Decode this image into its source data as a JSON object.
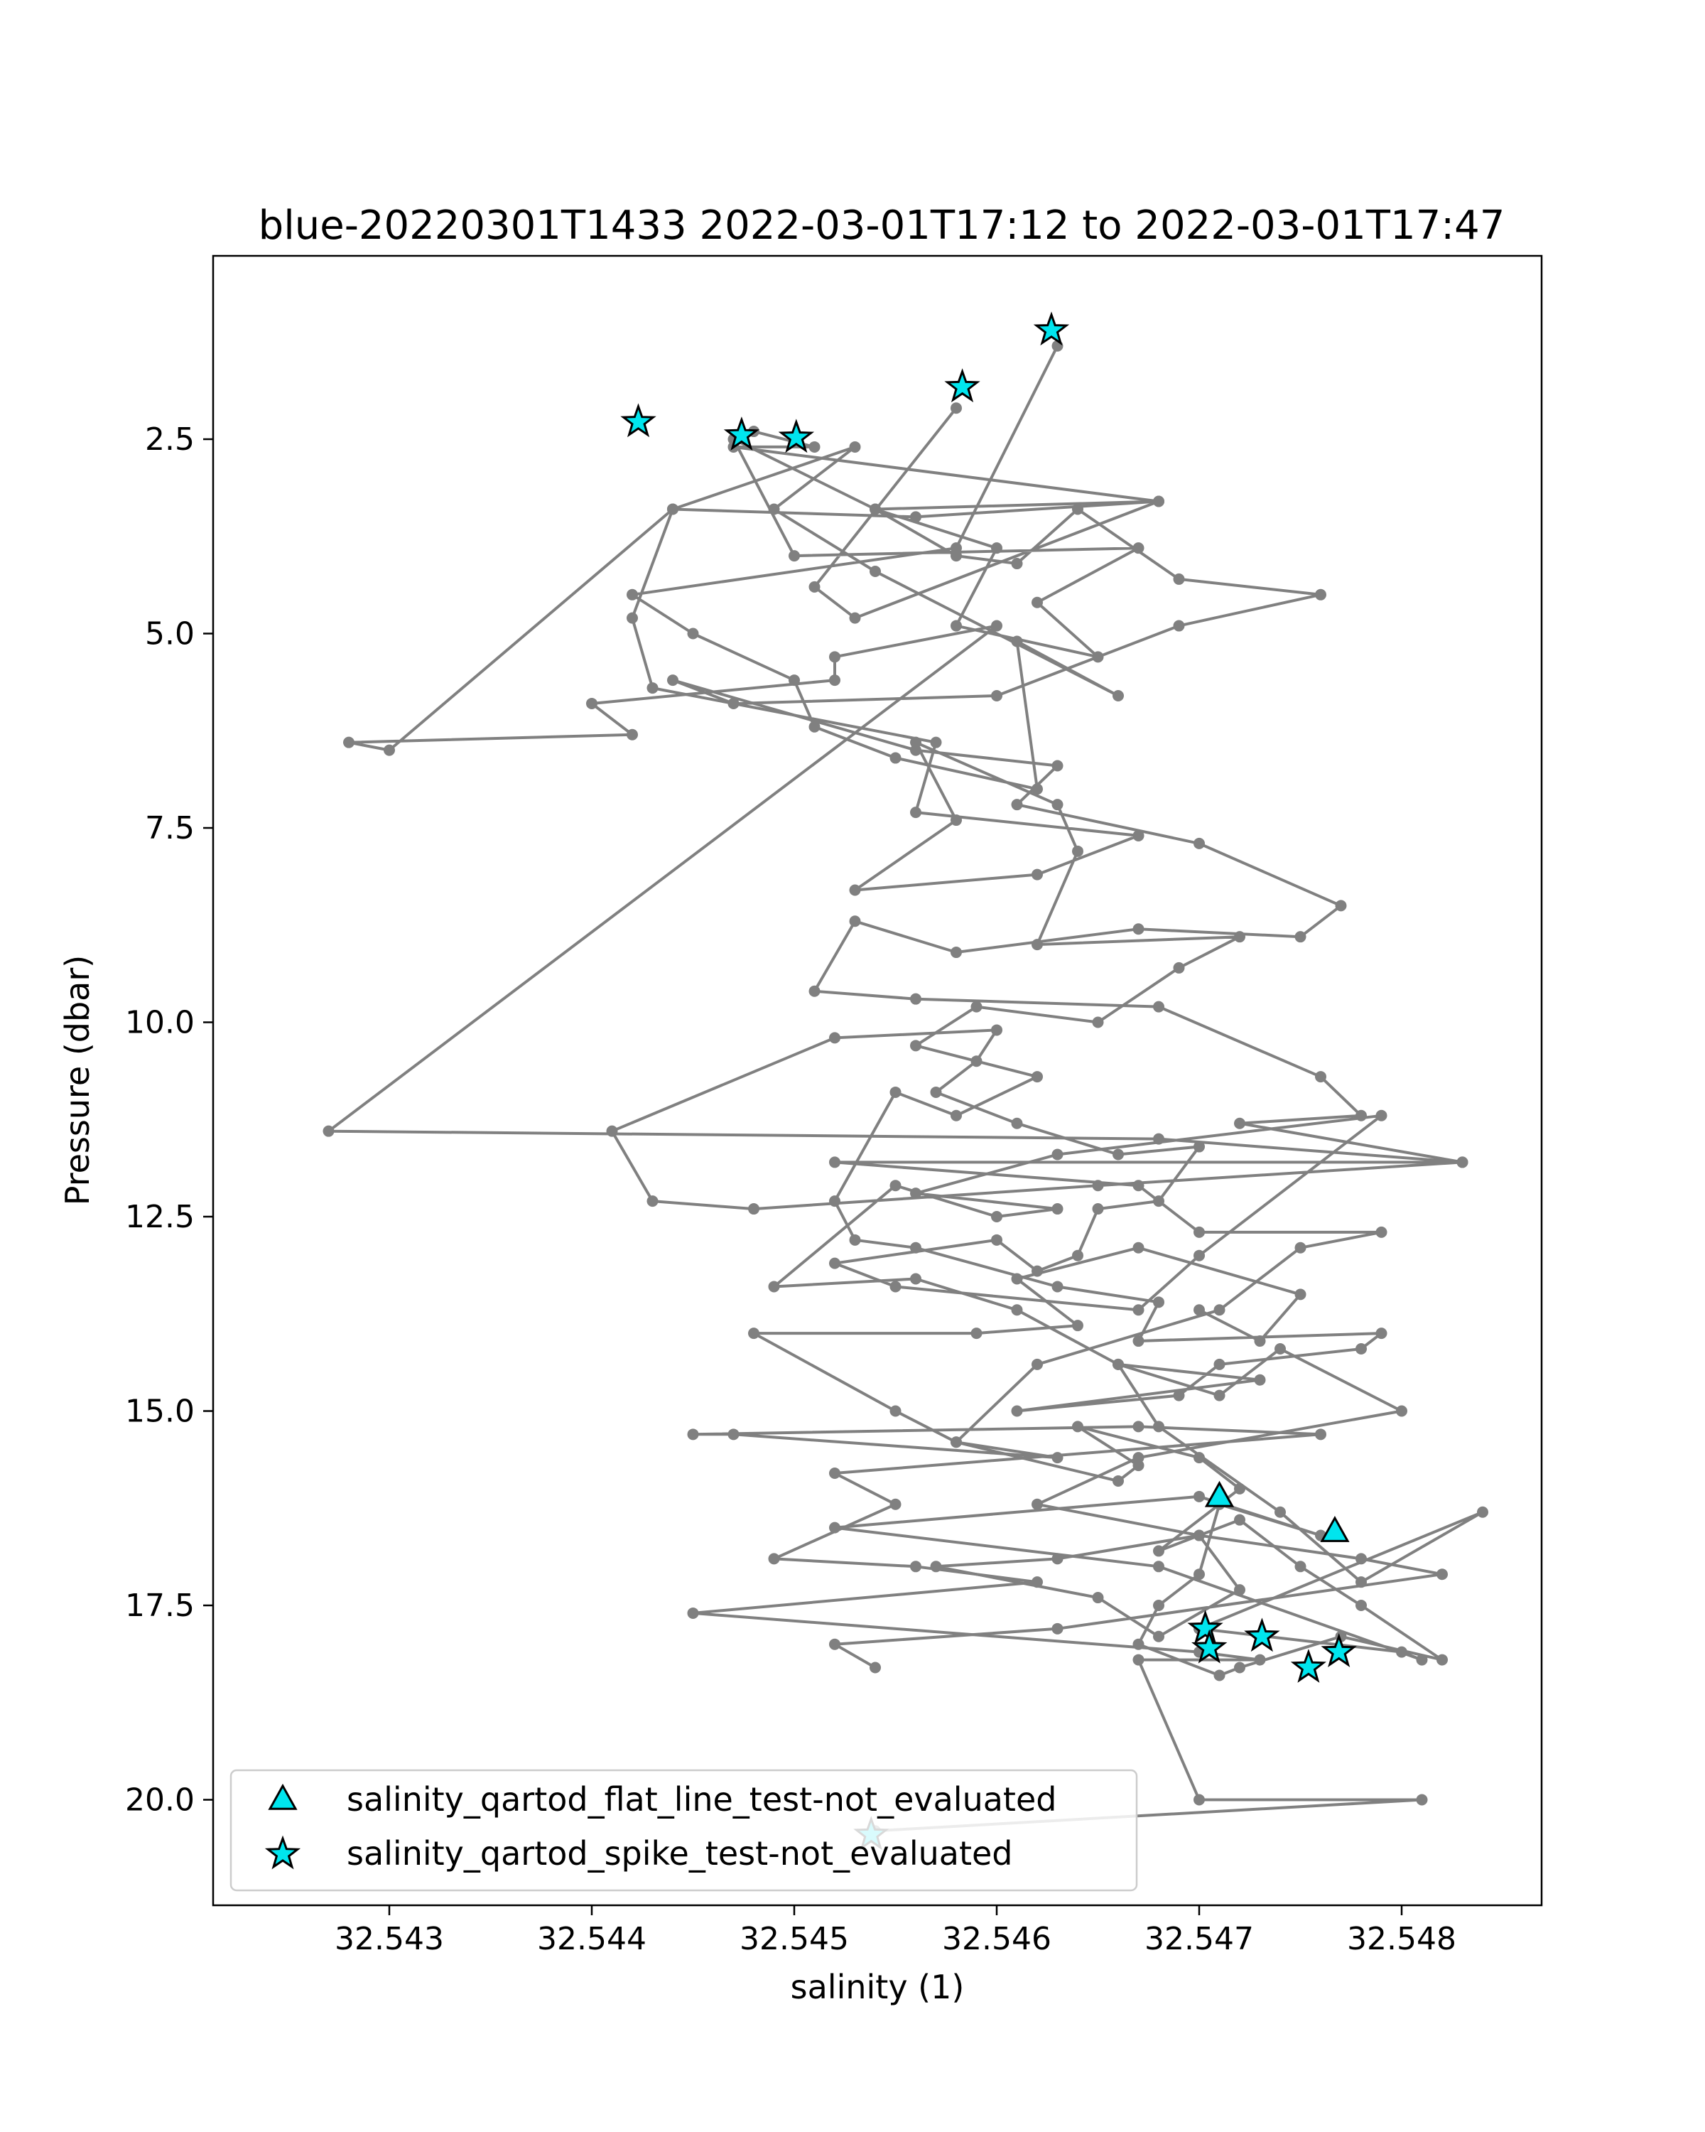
{
  "chart_data": {
    "type": "scatter",
    "title": "blue-20220301T1433 2022-03-01T17:12 to 2022-03-01T17:47",
    "xlabel": "salinity (1)",
    "ylabel": "Pressure (dbar)",
    "xlim": [
      32.5418,
      32.5487
    ],
    "ylim": [
      21.4,
      0.5
    ],
    "y_inverted": true,
    "grid": false,
    "legend_placement": "lower-left",
    "xticks": [
      "32.543",
      "32.544",
      "32.545",
      "32.546",
      "32.547",
      "32.548"
    ],
    "yticks": [
      "2.5",
      "5.0",
      "7.5",
      "10.0",
      "12.5",
      "15.0",
      "17.5",
      "20.0"
    ],
    "colors": {
      "profile": "#808080",
      "flag_fill": "#00e5ee",
      "flag_edge": "#000000",
      "axes": "#000000"
    },
    "profile": {
      "name": "",
      "color": "#808080",
      "x": [
        32.5463,
        32.5458,
        32.5442,
        32.5445,
        32.545,
        32.5451,
        32.5455,
        32.5462,
        32.5461,
        32.5466,
        32.5454,
        32.5449,
        32.5453,
        32.5444,
        32.5442,
        32.5443,
        32.5457,
        32.5456,
        32.5467,
        32.5462,
        32.5453,
        32.5458,
        32.5456,
        32.5463,
        32.5464,
        32.5462,
        32.5472,
        32.5469,
        32.5465,
        32.5459,
        32.5456,
        32.5462,
        32.5458,
        32.5455,
        32.5452,
        32.5453,
        32.5456,
        32.5463,
        32.5468,
        32.5467,
        32.5479,
        32.5478,
        32.5471,
        32.5469,
        32.5461,
        32.5473,
        32.5466,
        32.5468,
        32.5474,
        32.5478,
        32.5484,
        32.547,
        32.548,
        32.5481,
        32.5468,
        32.5452,
        32.547,
        32.5476,
        32.5471,
        32.547,
        32.5468,
        32.5467,
        32.5471,
        32.5472,
        32.5477,
        32.5482,
        32.5478,
        32.5475,
        32.5472,
        32.5468,
        32.5472,
        32.547,
        32.5464,
        32.5467,
        32.5466,
        32.5458,
        32.5455,
        32.5448,
        32.5459,
        32.5464,
        32.5461,
        32.5467,
        32.5475,
        32.5473,
        32.547
      ],
      "y": [
        1.3,
        3.9,
        4.5,
        5.0,
        5.6,
        6.2,
        6.6,
        7.0,
        5.1,
        5.8,
        4.2,
        3.4,
        2.6,
        3.4,
        4.8,
        5.7,
        6.4,
        7.3,
        7.6,
        8.1,
        8.3,
        7.4,
        6.4,
        7.2,
        7.8,
        9.0,
        8.9,
        9.3,
        10.0,
        9.8,
        10.3,
        10.7,
        11.2,
        10.9,
        12.3,
        12.8,
        12.9,
        13.4,
        13.6,
        14.1,
        14.0,
        14.2,
        14.4,
        14.8,
        15.0,
        14.6,
        14.4,
        15.2,
        16.3,
        17.2,
        16.3,
        17.8,
        18.1,
        18.2,
        17.0,
        16.5,
        16.1,
        16.6,
        16.2,
        17.1,
        17.5,
        18.0,
        18.4,
        18.3,
        17.9,
        18.2,
        17.5,
        17.0,
        16.4,
        16.8,
        16.0,
        15.6,
        15.2,
        15.7,
        15.9,
        15.4,
        15.0,
        14.0,
        14.0,
        13.9,
        13.3,
        12.9,
        13.5,
        14.1,
        13.7
      ]
    },
    "profile_b": {
      "x": [
        32.5458,
        32.5451,
        32.5453,
        32.5468,
        32.5454,
        32.546,
        32.5458,
        32.5465,
        32.5462,
        32.5467,
        32.545,
        32.5447,
        32.5454,
        32.5458,
        32.5461,
        32.5464,
        32.5469,
        32.5476,
        32.5469,
        32.546,
        32.5447,
        32.5444,
        32.5456,
        32.5463,
        32.5461,
        32.547,
        32.5477,
        32.5475,
        32.5467,
        32.5458,
        32.5453,
        32.5451,
        32.5456,
        32.5468,
        32.5476,
        32.5478,
        32.5472,
        32.5483,
        32.5465,
        32.5448,
        32.5443,
        32.5441,
        32.5452,
        32.546,
        32.5459,
        32.5457,
        32.5461,
        32.5466,
        32.547,
        32.5468,
        32.5465,
        32.5464,
        32.5462,
        32.546,
        32.5452,
        32.5455,
        32.5467,
        32.547,
        32.5479,
        32.5463,
        32.5456,
        32.5463,
        32.546,
        32.5455,
        32.5449,
        32.5456,
        32.5461,
        32.5466,
        32.5471,
        32.5474,
        32.548,
        32.5467,
        32.5462,
        32.547,
        32.5472,
        32.5468,
        32.5465,
        32.5457,
        32.5463,
        32.547,
        32.5478,
        32.5482,
        32.5463,
        32.5452,
        32.5454
      ],
      "y": [
        2.1,
        4.4,
        4.8,
        3.3,
        3.4,
        3.9,
        4.9,
        5.3,
        4.6,
        3.9,
        4.0,
        2.5,
        3.4,
        4.0,
        4.1,
        3.4,
        4.3,
        4.5,
        4.9,
        5.8,
        5.9,
        5.6,
        6.5,
        6.7,
        7.2,
        7.7,
        8.5,
        8.9,
        8.8,
        9.1,
        8.7,
        9.6,
        9.7,
        9.8,
        10.7,
        11.2,
        11.3,
        11.8,
        12.1,
        12.4,
        12.3,
        11.4,
        10.2,
        10.1,
        10.5,
        10.9,
        11.3,
        11.7,
        11.6,
        12.3,
        12.4,
        13.0,
        13.2,
        12.8,
        13.1,
        13.4,
        13.7,
        13.0,
        11.2,
        11.7,
        12.2,
        12.4,
        12.5,
        12.1,
        13.4,
        13.3,
        13.7,
        14.4,
        14.8,
        14.2,
        15.0,
        15.6,
        16.2,
        16.6,
        17.3,
        17.9,
        17.4,
        17.0,
        16.9,
        16.6,
        16.9,
        17.1,
        17.8,
        18.0,
        18.3
      ]
    },
    "profile_c": {
      "x": [
        32.5448,
        32.5451,
        32.5447,
        32.5468,
        32.5456,
        32.5444,
        32.543,
        32.5428,
        32.5442,
        32.544,
        32.5452,
        32.5452,
        32.546,
        32.5427,
        32.5468,
        32.5483,
        32.5452,
        32.5467,
        32.547,
        32.5479,
        32.5475,
        32.5471,
        32.5462,
        32.5458,
        32.5463,
        32.5447,
        32.5445,
        32.5467,
        32.5476,
        32.5452,
        32.5455,
        32.5449,
        32.5456,
        32.5462,
        32.5445,
        32.547,
        32.5473,
        32.5467,
        32.547,
        32.5481,
        32.5454
      ],
      "y": [
        2.4,
        2.6,
        2.6,
        3.3,
        3.5,
        3.4,
        6.5,
        6.4,
        6.3,
        5.9,
        5.6,
        5.3,
        4.9,
        11.4,
        11.5,
        11.8,
        11.8,
        12.1,
        12.7,
        12.7,
        12.9,
        13.7,
        14.4,
        15.4,
        15.6,
        15.3,
        15.3,
        15.2,
        15.3,
        15.8,
        16.2,
        16.9,
        17.0,
        17.2,
        17.6,
        18.1,
        18.2,
        18.2,
        20.0,
        20.0,
        20.4
      ]
    },
    "flagged": [
      {
        "label": "salinity_qartod_flat_line_test-not_evaluated",
        "marker": "triangle",
        "points": [
          [
            32.5471,
            16.1
          ],
          [
            32.54767,
            16.55
          ]
        ]
      },
      {
        "label": "salinity_qartod_spike_test-not_evaluated",
        "marker": "star",
        "points": [
          [
            32.54627,
            1.1
          ],
          [
            32.54583,
            1.83
          ],
          [
            32.54423,
            2.28
          ],
          [
            32.54474,
            2.45
          ],
          [
            32.54501,
            2.48
          ],
          [
            32.54703,
            17.8
          ],
          [
            32.54705,
            18.05
          ],
          [
            32.54731,
            17.9
          ],
          [
            32.54754,
            18.3
          ],
          [
            32.54769,
            18.1
          ],
          [
            32.54538,
            20.45
          ]
        ]
      }
    ],
    "legend": [
      {
        "label": "salinity_qartod_flat_line_test-not_evaluated",
        "marker": "triangle"
      },
      {
        "label": "salinity_qartod_spike_test-not_evaluated",
        "marker": "star"
      }
    ]
  }
}
